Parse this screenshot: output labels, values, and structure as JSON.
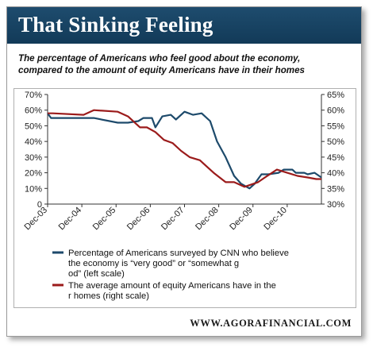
{
  "header": {
    "title": "That Sinking Feeling",
    "subtitle_line1": "The percentage of Americans who feel good about the economy,",
    "subtitle_line2": "compared to the amount of equity Americans have in their homes"
  },
  "footer": {
    "source": "WWW.AGORAFINANCIAL.COM"
  },
  "colors": {
    "banner": "#1a4565",
    "left_series": "#1d4a6b",
    "right_series": "#9b1b1b"
  },
  "chart_data": {
    "type": "line",
    "x_categories": [
      "Dec-03",
      "Dec-04",
      "Dec-05",
      "Dec-06",
      "Dec-07",
      "Dec-08",
      "Dec-09",
      "Dec-10"
    ],
    "left_axis": {
      "ticks": [
        "0",
        "10%",
        "20%",
        "30%",
        "40%",
        "50%",
        "60%",
        "70%"
      ],
      "ylim": [
        0,
        70
      ]
    },
    "right_axis": {
      "ticks": [
        "30%",
        "35%",
        "40%",
        "45%",
        "50%",
        "55%",
        "60%",
        "65%"
      ],
      "ylim": [
        30,
        65
      ]
    },
    "grid": false,
    "series": [
      {
        "name": "Percentage of Americans surveyed by CNN who believe the economy is “very good” or “somewhat good” (left scale)",
        "axis": "left",
        "x": [
          2003.95,
          2004.05,
          2004.5,
          2005.0,
          2005.3,
          2006.0,
          2006.3,
          2006.6,
          2006.75,
          2007.0,
          2007.1,
          2007.3,
          2007.55,
          2007.7,
          2007.95,
          2008.2,
          2008.45,
          2008.7,
          2008.9,
          2009.15,
          2009.4,
          2009.6,
          2009.85,
          2010.0,
          2010.2,
          2010.4,
          2010.7,
          2010.85,
          2011.1,
          2011.2,
          2011.45,
          2011.55,
          2011.75,
          2011.95
        ],
        "y": [
          58,
          55,
          55,
          55,
          55,
          52,
          52,
          53,
          55,
          55,
          49,
          56,
          57,
          54,
          59,
          57,
          58,
          53,
          40,
          30,
          18,
          13,
          10,
          13,
          19,
          19,
          20,
          22,
          22,
          20,
          20,
          19,
          20,
          17
        ]
      },
      {
        "name": "The average amount of equity Americans have in their homes (right scale)",
        "axis": "right",
        "x": [
          2003.95,
          2004.1,
          2005.0,
          2005.3,
          2006.0,
          2006.3,
          2006.65,
          2006.85,
          2007.1,
          2007.35,
          2007.6,
          2007.85,
          2008.1,
          2008.4,
          2008.6,
          2008.8,
          2009.15,
          2009.4,
          2009.7,
          2010.1,
          2010.3,
          2010.65,
          2010.95,
          2011.25,
          2011.55,
          2011.8,
          2011.95
        ],
        "y": [
          59,
          59,
          58.5,
          60,
          59.5,
          58,
          54.5,
          54.5,
          53,
          50.5,
          49.5,
          47,
          45,
          44,
          42,
          40,
          37,
          37,
          35.5,
          37,
          38.5,
          41,
          40,
          39,
          38.5,
          38,
          38
        ]
      }
    ]
  }
}
